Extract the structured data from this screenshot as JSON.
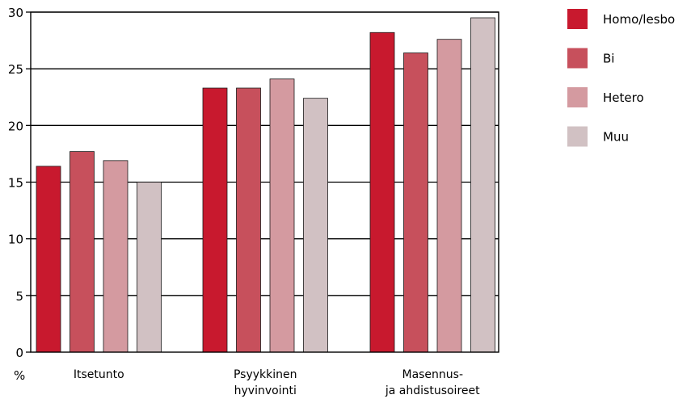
{
  "chart_data": {
    "type": "bar",
    "title": "",
    "xlabel": "",
    "ylabel": "%",
    "ylim": [
      0,
      30
    ],
    "yticks": [
      "0",
      "5",
      "10",
      "15",
      "20",
      "25",
      "30"
    ],
    "grid": true,
    "legend_position": "right",
    "categories": [
      [
        "Itsetunto"
      ],
      [
        "Psyykkinen",
        "hyvinvointi"
      ],
      [
        "Masennus-",
        "ja ahdistusoireet"
      ]
    ],
    "series": [
      {
        "name": "Homo/lesbo",
        "color": "#c8192e",
        "values": [
          16.4,
          23.3,
          28.2
        ]
      },
      {
        "name": "Bi",
        "color": "#c7505c",
        "values": [
          17.7,
          23.3,
          26.4
        ]
      },
      {
        "name": "Hetero",
        "color": "#d49aa0",
        "values": [
          16.9,
          24.1,
          27.6
        ]
      },
      {
        "name": "Muu",
        "color": "#d1c1c3",
        "values": [
          15.0,
          22.4,
          29.5
        ]
      }
    ]
  }
}
